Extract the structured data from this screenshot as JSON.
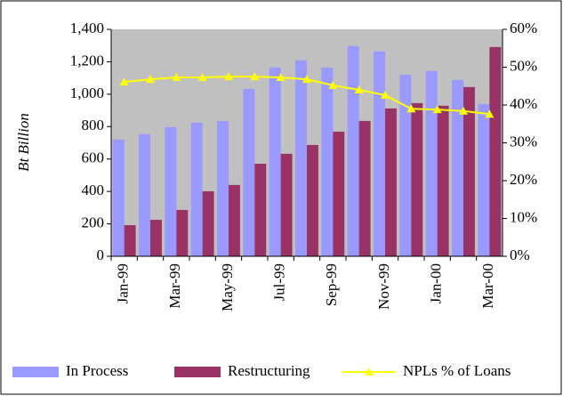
{
  "chart_data": {
    "type": "bar-line",
    "y_label": "Bt Billion",
    "categories": [
      "Jan-99",
      null,
      "Mar-99",
      null,
      "May-99",
      null,
      "Jul-99",
      null,
      "Sep-99",
      null,
      "Nov-99",
      null,
      "Jan-00",
      null,
      "Mar-00"
    ],
    "series": [
      {
        "name": "In Process",
        "color": "#9999ff",
        "type": "bar",
        "values": [
          720,
          753,
          797,
          824,
          835,
          1033,
          1165,
          1209,
          1165,
          1297,
          1264,
          1121,
          1143,
          1088,
          940
        ]
      },
      {
        "name": "Restructuring",
        "color": "#993366",
        "type": "bar",
        "values": [
          192,
          225,
          286,
          401,
          440,
          571,
          632,
          687,
          769,
          835,
          912,
          945,
          929,
          1044,
          1291
        ]
      },
      {
        "name": "NPLs % of Loans",
        "color": "#ffff00",
        "type": "line",
        "axis": "y2",
        "values": [
          46.1,
          46.8,
          47.3,
          47.3,
          47.5,
          47.5,
          47.3,
          46.8,
          45.2,
          44.0,
          42.6,
          39.0,
          38.8,
          38.4,
          37.6
        ]
      }
    ],
    "ylim": [
      0,
      1400
    ],
    "yticks": [
      0,
      200,
      400,
      600,
      800,
      {
        "value": 1000,
        "label": "1,000"
      },
      {
        "value": 1200,
        "label": "1,200"
      },
      {
        "value": 1400,
        "label": "1,400"
      }
    ],
    "y2lim": [
      0,
      60
    ],
    "y2ticks": [
      {
        "value": 0,
        "label": "0%"
      },
      {
        "value": 10,
        "label": "10%"
      },
      {
        "value": 20,
        "label": "20%"
      },
      {
        "value": 30,
        "label": "30%"
      },
      {
        "value": 40,
        "label": "40%"
      },
      {
        "value": 50,
        "label": "50%"
      },
      {
        "value": 60,
        "label": "60%"
      }
    ],
    "plot_background": "#c0c0c0",
    "legend": "bottom"
  }
}
